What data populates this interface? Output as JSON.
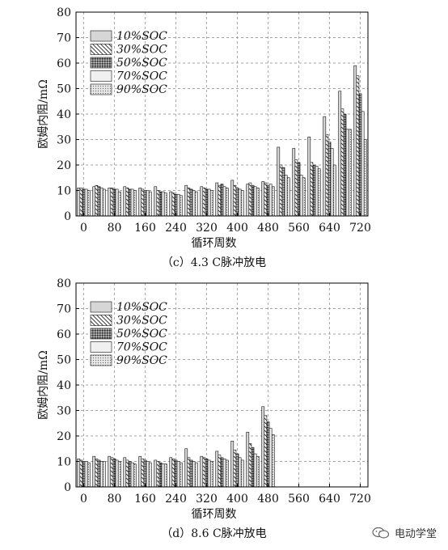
{
  "chart_data": [
    {
      "type": "bar",
      "caption": "（c）4.3 C脉冲放电",
      "xlabel": "循环周数",
      "ylabel": "欧姆内阻/mΩ",
      "ylim": [
        0,
        80
      ],
      "yticks": [
        0,
        10,
        20,
        30,
        40,
        50,
        60,
        70,
        80
      ],
      "grid": true,
      "legend_position": "top-left",
      "x_tick_labels": [
        "0",
        "80",
        "160",
        "240",
        "320",
        "400",
        "480",
        "560",
        "640",
        "720"
      ],
      "categories": [
        0,
        40,
        80,
        120,
        160,
        200,
        240,
        280,
        320,
        360,
        400,
        440,
        480,
        520,
        560,
        600,
        640,
        680,
        720
      ],
      "series": [
        {
          "name": "10%SOC",
          "values": [
            11,
            11.5,
            11,
            11.5,
            11,
            11.5,
            9.5,
            12,
            11.5,
            13,
            14,
            12.5,
            13.5,
            27,
            26.5,
            31,
            39,
            49,
            59
          ]
        },
        {
          "name": "30%SOC",
          "values": [
            11,
            12,
            11,
            11,
            10.5,
            10,
            9,
            11,
            11,
            12,
            12,
            13,
            13,
            20,
            22,
            21,
            32,
            42,
            55
          ]
        },
        {
          "name": "50%SOC",
          "values": [
            10.5,
            11.5,
            10.5,
            10.5,
            10,
            9.5,
            8.5,
            10.5,
            10.5,
            12.5,
            11,
            12,
            12,
            19,
            21,
            20,
            29,
            40,
            48
          ]
        },
        {
          "name": "70%SOC",
          "values": [
            10.5,
            11,
            10.5,
            10.5,
            10,
            9.5,
            8.5,
            10,
            10.5,
            11.5,
            10.5,
            11.5,
            12.5,
            16,
            16,
            19.5,
            26.5,
            34,
            41
          ]
        },
        {
          "name": "90%SOC",
          "values": [
            10,
            10.5,
            9.5,
            10,
            9.5,
            9,
            8,
            9.5,
            10,
            11,
            10,
            11,
            11.5,
            15,
            15,
            18.5,
            20,
            34,
            30
          ]
        }
      ]
    },
    {
      "type": "bar",
      "caption": "（d）8.6 C脉冲放电",
      "xlabel": "循环周数",
      "ylabel": "欧姆内阻/mΩ",
      "ylim": [
        0,
        80
      ],
      "yticks": [
        0,
        10,
        20,
        30,
        40,
        50,
        60,
        70,
        80
      ],
      "grid": true,
      "legend_position": "top-left",
      "x_tick_labels": [
        "0",
        "80",
        "160",
        "240",
        "320",
        "400",
        "480",
        "560",
        "640",
        "720"
      ],
      "categories": [
        0,
        40,
        80,
        120,
        160,
        200,
        240,
        280,
        320,
        360,
        400,
        440,
        480
      ],
      "series": [
        {
          "name": "10%SOC",
          "values": [
            11,
            12,
            12,
            11.5,
            12,
            10.5,
            11.5,
            15,
            12,
            14,
            18,
            21.5,
            31.5
          ]
        },
        {
          "name": "30%SOC",
          "values": [
            10.5,
            11,
            11.5,
            10.5,
            11,
            10,
            11,
            11.5,
            11.5,
            12.5,
            14.5,
            17,
            28
          ]
        },
        {
          "name": "50%SOC",
          "values": [
            10,
            10.5,
            11,
            10,
            10.5,
            9.5,
            10.5,
            10.5,
            11,
            11.5,
            13,
            15.5,
            25.5
          ]
        },
        {
          "name": "70%SOC",
          "values": [
            10,
            10,
            10.5,
            9.5,
            10,
            9,
            10,
            10,
            10.5,
            11,
            11.5,
            13,
            23
          ]
        },
        {
          "name": "90%SOC",
          "values": [
            9.5,
            10,
            10,
            9,
            9.5,
            9,
            9.5,
            9.5,
            10,
            10.5,
            10.5,
            12,
            20.5
          ]
        }
      ]
    }
  ],
  "watermark": {
    "text": "电动学堂",
    "icon": "wechat-icon"
  }
}
